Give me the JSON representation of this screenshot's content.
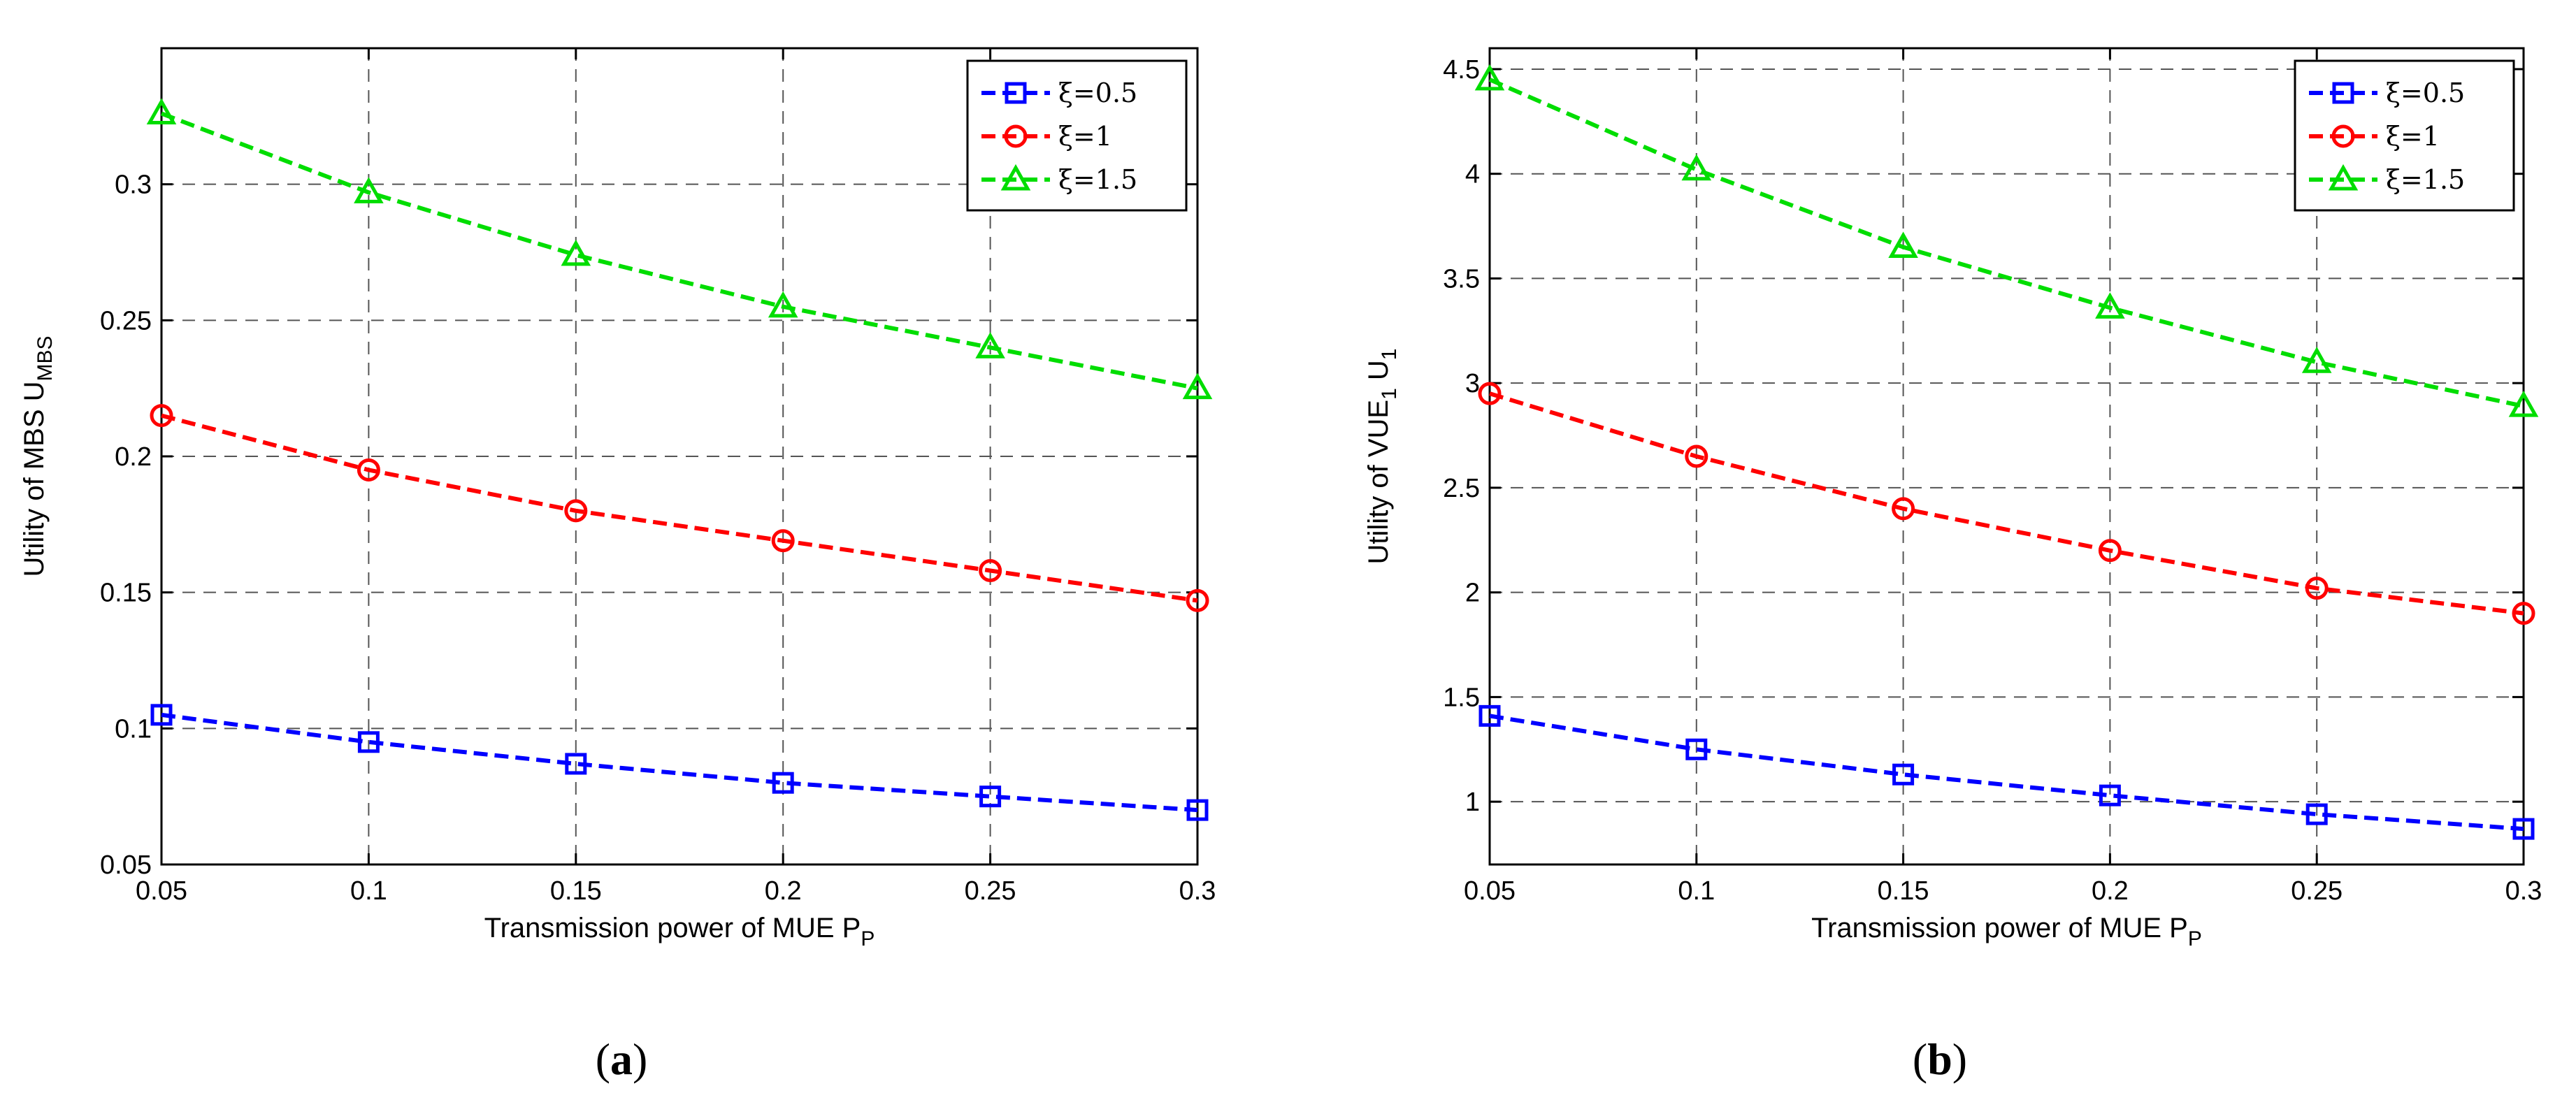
{
  "chart_data": [
    {
      "type": "line",
      "panel": "a",
      "caption": {
        "open": "(",
        "letter": "a",
        "close": ")"
      },
      "xlabel": {
        "main": "Transmission power of MUE P",
        "sub": "P"
      },
      "ylabel": {
        "main": "Utility of MBS U",
        "sub": "MBS"
      },
      "xlim": [
        0.05,
        0.3
      ],
      "ylim": [
        0.05,
        0.35
      ],
      "xticks": [
        0.05,
        0.1,
        0.15,
        0.2,
        0.25,
        0.3
      ],
      "xtick_labels": [
        "0.05",
        "0.1",
        "0.15",
        "0.2",
        "0.25",
        "0.3"
      ],
      "yticks": [
        0.05,
        0.1,
        0.15,
        0.2,
        0.25,
        0.3
      ],
      "ytick_labels": [
        "0.05",
        "0.1",
        "0.15",
        "0.2",
        "0.25",
        "0.3"
      ],
      "grid": true,
      "legend_position": "top-right",
      "x": [
        0.05,
        0.1,
        0.15,
        0.2,
        0.25,
        0.3
      ],
      "series": [
        {
          "name": "ξ=0.5",
          "color": "#0000ff",
          "marker": "square",
          "values": [
            0.105,
            0.095,
            0.087,
            0.08,
            0.075,
            0.07
          ]
        },
        {
          "name": "ξ=1",
          "color": "#ff0000",
          "marker": "circle",
          "values": [
            0.215,
            0.195,
            0.18,
            0.169,
            0.158,
            0.147
          ]
        },
        {
          "name": "ξ=1.5",
          "color": "#00dd00",
          "marker": "triangle",
          "values": [
            0.326,
            0.297,
            0.274,
            0.255,
            0.24,
            0.225
          ]
        }
      ]
    },
    {
      "type": "line",
      "panel": "b",
      "caption": {
        "open": "(",
        "letter": "b",
        "close": ")"
      },
      "xlabel": {
        "main": "Transmission power of MUE P",
        "sub": "P"
      },
      "ylabel": {
        "main": "Utility of VUE",
        "sub": "1",
        "main2": " U",
        "sub2": "1"
      },
      "xlim": [
        0.05,
        0.3
      ],
      "ylim": [
        0.7,
        4.6
      ],
      "xticks": [
        0.05,
        0.1,
        0.15,
        0.2,
        0.25,
        0.3
      ],
      "xtick_labels": [
        "0.05",
        "0.1",
        "0.15",
        "0.2",
        "0.25",
        "0.3"
      ],
      "yticks": [
        1,
        1.5,
        2,
        2.5,
        3,
        3.5,
        4,
        4.5
      ],
      "ytick_labels": [
        "1",
        "1.5",
        "2",
        "2.5",
        "3",
        "3.5",
        "4",
        "4.5"
      ],
      "grid": true,
      "legend_position": "top-right",
      "x": [
        0.05,
        0.1,
        0.15,
        0.2,
        0.25,
        0.3
      ],
      "series": [
        {
          "name": "ξ=0.5",
          "color": "#0000ff",
          "marker": "square",
          "values": [
            1.41,
            1.25,
            1.13,
            1.03,
            0.94,
            0.87
          ]
        },
        {
          "name": "ξ=1",
          "color": "#ff0000",
          "marker": "circle",
          "values": [
            2.95,
            2.65,
            2.4,
            2.2,
            2.02,
            1.9
          ]
        },
        {
          "name": "ξ=1.5",
          "color": "#00dd00",
          "marker": "triangle",
          "values": [
            4.45,
            4.02,
            3.65,
            3.36,
            3.1,
            2.89
          ]
        }
      ]
    }
  ]
}
